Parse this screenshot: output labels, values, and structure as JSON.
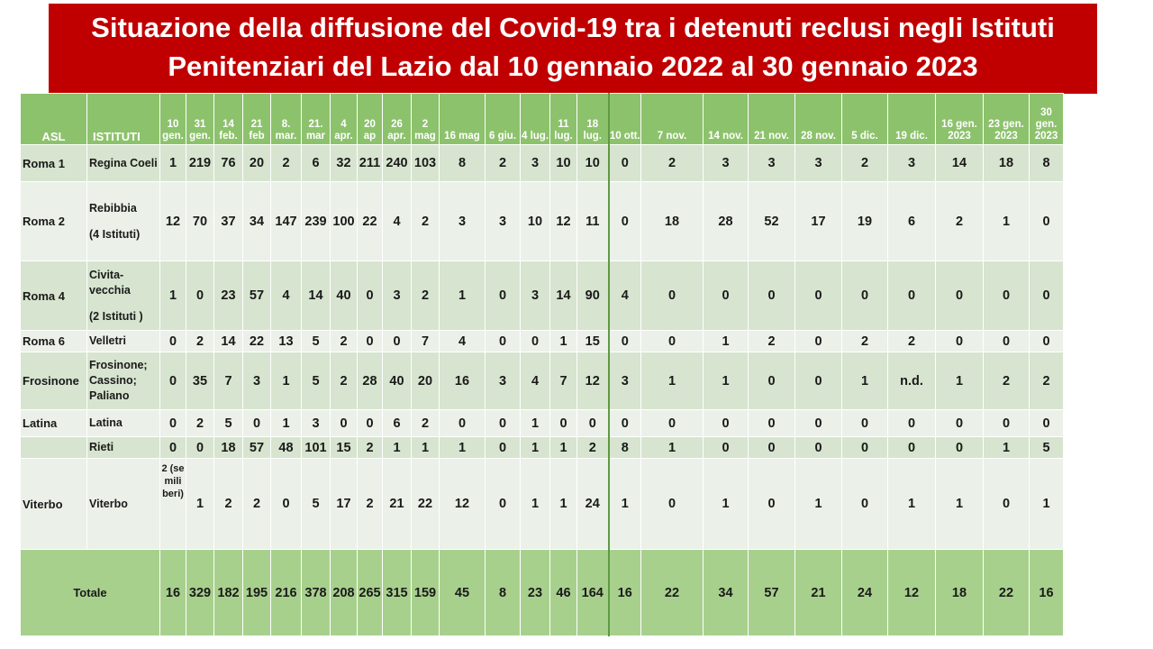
{
  "title": {
    "line1": "Situazione della diffusione del Covid-19 tra i detenuti reclusi negli Istituti",
    "line2": "Penitenziari  del Lazio dal 10 gennaio 2022 al 30 gennaio 2023"
  },
  "header": {
    "asl": "ASL",
    "istituti": "ISTITUTI",
    "dates": [
      "10 gen.",
      "31 gen.",
      "14 feb.",
      "21 feb",
      "8. mar.",
      "21. mar",
      "4 apr.",
      "20 ap",
      "26 apr.",
      "2 mag",
      "16 mag",
      "6 giu.",
      "4 lug.",
      "11 lug.",
      "18 lug.",
      "10 ott.",
      "7 nov.",
      "14 nov.",
      "21 nov.",
      "28 nov.",
      "5 dic.",
      "19 dic.",
      "16 gen. 2023",
      "23 gen. 2023",
      "30 gen. 2023"
    ]
  },
  "rows": [
    {
      "asl": "Roma 1",
      "istituto": "Regina Coeli",
      "note": "",
      "values": [
        "1",
        "219",
        "76",
        "20",
        "2",
        "6",
        "32",
        "211",
        "240",
        "103",
        "8",
        "2",
        "3",
        "10",
        "10",
        "0",
        "2",
        "3",
        "3",
        "3",
        "2",
        "3",
        "14",
        "18",
        "8"
      ]
    },
    {
      "asl": "Roma 2",
      "istituto": "Rebibbia",
      "note": "(4 Istituti)",
      "values": [
        "12",
        "70",
        "37",
        "34",
        "147",
        "239",
        "100",
        "22",
        "4",
        "2",
        "3",
        "3",
        "10",
        "12",
        "11",
        "0",
        "18",
        "28",
        "52",
        "17",
        "19",
        "6",
        "2",
        "1",
        "0"
      ]
    },
    {
      "asl": "Roma 4",
      "istituto": "Civita-vecchia",
      "note": "(2 Istituti )",
      "values": [
        "1",
        "0",
        "23",
        "57",
        "4",
        "14",
        "40",
        "0",
        "3",
        "2",
        "1",
        "0",
        "3",
        "14",
        "90",
        "4",
        "0",
        "0",
        "0",
        "0",
        "0",
        "0",
        "0",
        "0",
        "0"
      ]
    },
    {
      "asl": "Roma 6",
      "istituto": "Velletri",
      "note": "",
      "values": [
        "0",
        "2",
        "14",
        "22",
        "13",
        "5",
        "2",
        "0",
        "0",
        "7",
        "4",
        "0",
        "0",
        "1",
        "15",
        "0",
        "0",
        "1",
        "2",
        "0",
        "2",
        "2",
        "0",
        "0",
        "0"
      ]
    },
    {
      "asl": "Frosinone",
      "istituto": "Frosinone; Cassino; Paliano",
      "note": "",
      "values": [
        "0",
        "35",
        "7",
        "3",
        "1",
        "5",
        "2",
        "28",
        "40",
        "20",
        "16",
        "3",
        "4",
        "7",
        "12",
        "3",
        "1",
        "1",
        "0",
        "0",
        "1",
        "n.d.",
        "1",
        "2",
        "2"
      ]
    },
    {
      "asl": "Latina",
      "istituto": "Latina",
      "note": "",
      "values": [
        "0",
        "2",
        "5",
        "0",
        "1",
        "3",
        "0",
        "0",
        "6",
        "2",
        "0",
        "0",
        "1",
        "0",
        "0",
        "0",
        "0",
        "0",
        "0",
        "0",
        "0",
        "0",
        "0",
        "0",
        "0"
      ]
    },
    {
      "asl": "",
      "istituto": "Rieti",
      "note": "",
      "values": [
        "0",
        "0",
        "18",
        "57",
        "48",
        "101",
        "15",
        "2",
        "1",
        "1",
        "1",
        "0",
        "1",
        "1",
        "2",
        "8",
        "1",
        "0",
        "0",
        "0",
        "0",
        "0",
        "0",
        "1",
        "5"
      ]
    },
    {
      "asl": "Viterbo",
      "istituto": "Viterbo",
      "note": "",
      "values": [
        "2 (se mili beri)",
        "1",
        "2",
        "2",
        "0",
        "5",
        "17",
        "2",
        "21",
        "22",
        "12",
        "0",
        "1",
        "1",
        "24",
        "1",
        "0",
        "1",
        "0",
        "1",
        "0",
        "1",
        "1",
        "0",
        "1"
      ]
    }
  ],
  "total": {
    "label": "Totale",
    "values": [
      "16",
      "329",
      "182",
      "195",
      "216",
      "378",
      "208",
      "265",
      "315",
      "159",
      "45",
      "8",
      "23",
      "46",
      "164",
      "16",
      "22",
      "34",
      "57",
      "21",
      "24",
      "12",
      "18",
      "22",
      "16"
    ]
  }
}
